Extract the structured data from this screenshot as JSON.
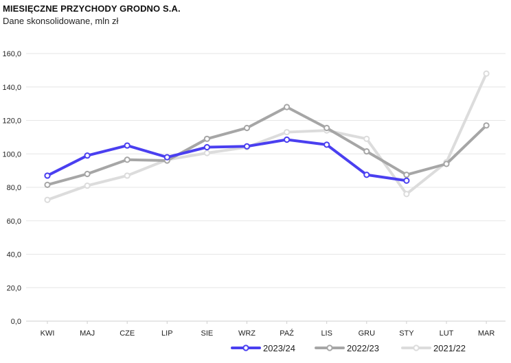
{
  "header": {
    "title": "MIESIĘCZNE PRZYCHODY GRODNO S.A.",
    "subtitle": "Dane skonsolidowane, mln zł"
  },
  "chart_data": {
    "type": "line",
    "title": "MIESIĘCZNE PRZYCHODY GRODNO S.A.",
    "subtitle": "Dane skonsolidowane, mln zł",
    "xlabel": "",
    "ylabel": "",
    "ylim": [
      0,
      160
    ],
    "yticks": [
      0,
      20,
      40,
      60,
      80,
      100,
      120,
      140,
      160
    ],
    "ytick_labels": [
      "0,0",
      "20,0",
      "40,0",
      "60,0",
      "80,0",
      "100,0",
      "120,0",
      "140,0",
      "160,0"
    ],
    "grid": true,
    "legend_position": "bottom",
    "categories": [
      "KWI",
      "MAJ",
      "CZE",
      "LIP",
      "SIE",
      "WRZ",
      "PAŹ",
      "LIS",
      "GRU",
      "STY",
      "LUT",
      "MAR"
    ],
    "series": [
      {
        "name": "2021/22",
        "color": "#dcdcdc",
        "values": [
          72.5,
          81,
          87,
          96.5,
          100.5,
          104,
          113,
          114,
          109,
          76,
          95,
          148
        ]
      },
      {
        "name": "2022/23",
        "color": "#a6a6a6",
        "values": [
          81.5,
          88,
          96.5,
          96,
          109,
          115.5,
          128,
          115.5,
          101.5,
          87.5,
          94,
          117
        ]
      },
      {
        "name": "2023/24",
        "color": "#4a3ff0",
        "values": [
          87,
          99,
          105,
          98,
          104,
          104.5,
          108.5,
          105.5,
          87.5,
          84,
          null,
          null
        ]
      }
    ],
    "legend_order": [
      "2023/24",
      "2022/23",
      "2021/22"
    ]
  }
}
